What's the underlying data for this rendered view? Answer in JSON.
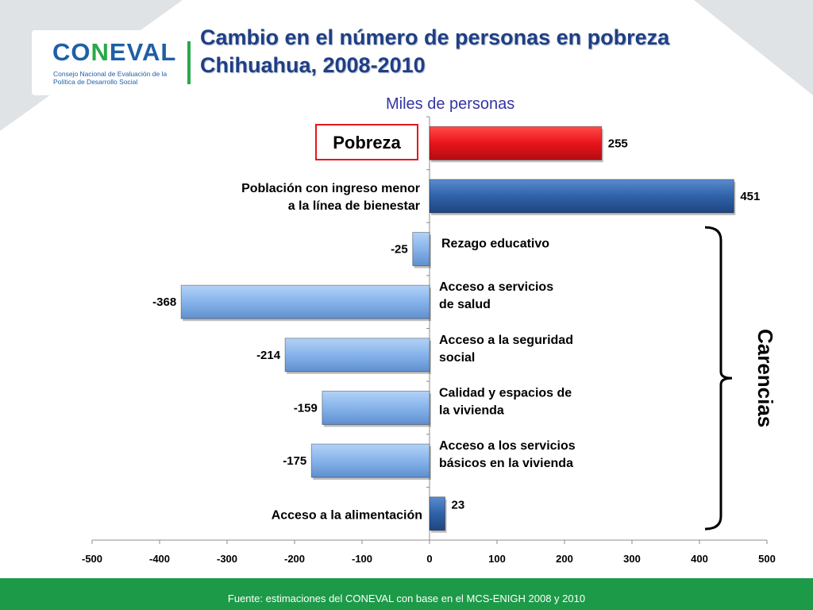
{
  "header": {
    "title_line1": "Cambio en el número de personas en pobreza",
    "title_line2": "Chihuahua, 2008-2010",
    "logo_text": "CONEVAL",
    "logo_subtitle": "Consejo Nacional de Evaluación de la Política de Desarrollo Social"
  },
  "footer": {
    "source": "Fuente: estimaciones del CONEVAL con base en el MCS-ENIGH 2008 y 2010"
  },
  "colors": {
    "pobreza": "#e8141b",
    "ingreso": "#2f62a8",
    "carencia_negative": "#86b3ea",
    "carencia_positive": "#2f62a8",
    "title": "#1f3f85",
    "footer": "#1d9a48"
  },
  "chart_data": {
    "type": "bar",
    "orientation": "horizontal",
    "title": "Miles de personas",
    "categories": [
      "Pobreza",
      "Población con ingreso menor a la línea de bienestar",
      "Rezago educativo",
      "Acceso a servicios de salud",
      "Acceso a  la seguridad social",
      "Calidad y espacios de la vivienda",
      "Acceso a los servicios básicos en la vivienda",
      "Acceso a la alimentación"
    ],
    "category_label_lines": [
      [
        "Pobreza"
      ],
      [
        "Población con ingreso menor",
        "a la línea de bienestar"
      ],
      [
        "Rezago educativo"
      ],
      [
        "Acceso a servicios",
        " de salud"
      ],
      [
        "Acceso a  la seguridad",
        "social"
      ],
      [
        "Calidad y espacios de",
        "la vivienda"
      ],
      [
        "Acceso a los servicios",
        "básicos en la vivienda"
      ],
      [
        "Acceso a la alimentación"
      ]
    ],
    "values": [
      255,
      451,
      -25,
      -368,
      -214,
      -159,
      -175,
      23
    ],
    "xlim": [
      -500,
      500
    ],
    "xticks": [
      -500,
      -400,
      -300,
      -200,
      -100,
      0,
      100,
      200,
      300,
      400,
      500
    ],
    "group_bracket": {
      "label": "Carencias",
      "from_category": 2,
      "to_category": 7
    },
    "grid": false
  }
}
